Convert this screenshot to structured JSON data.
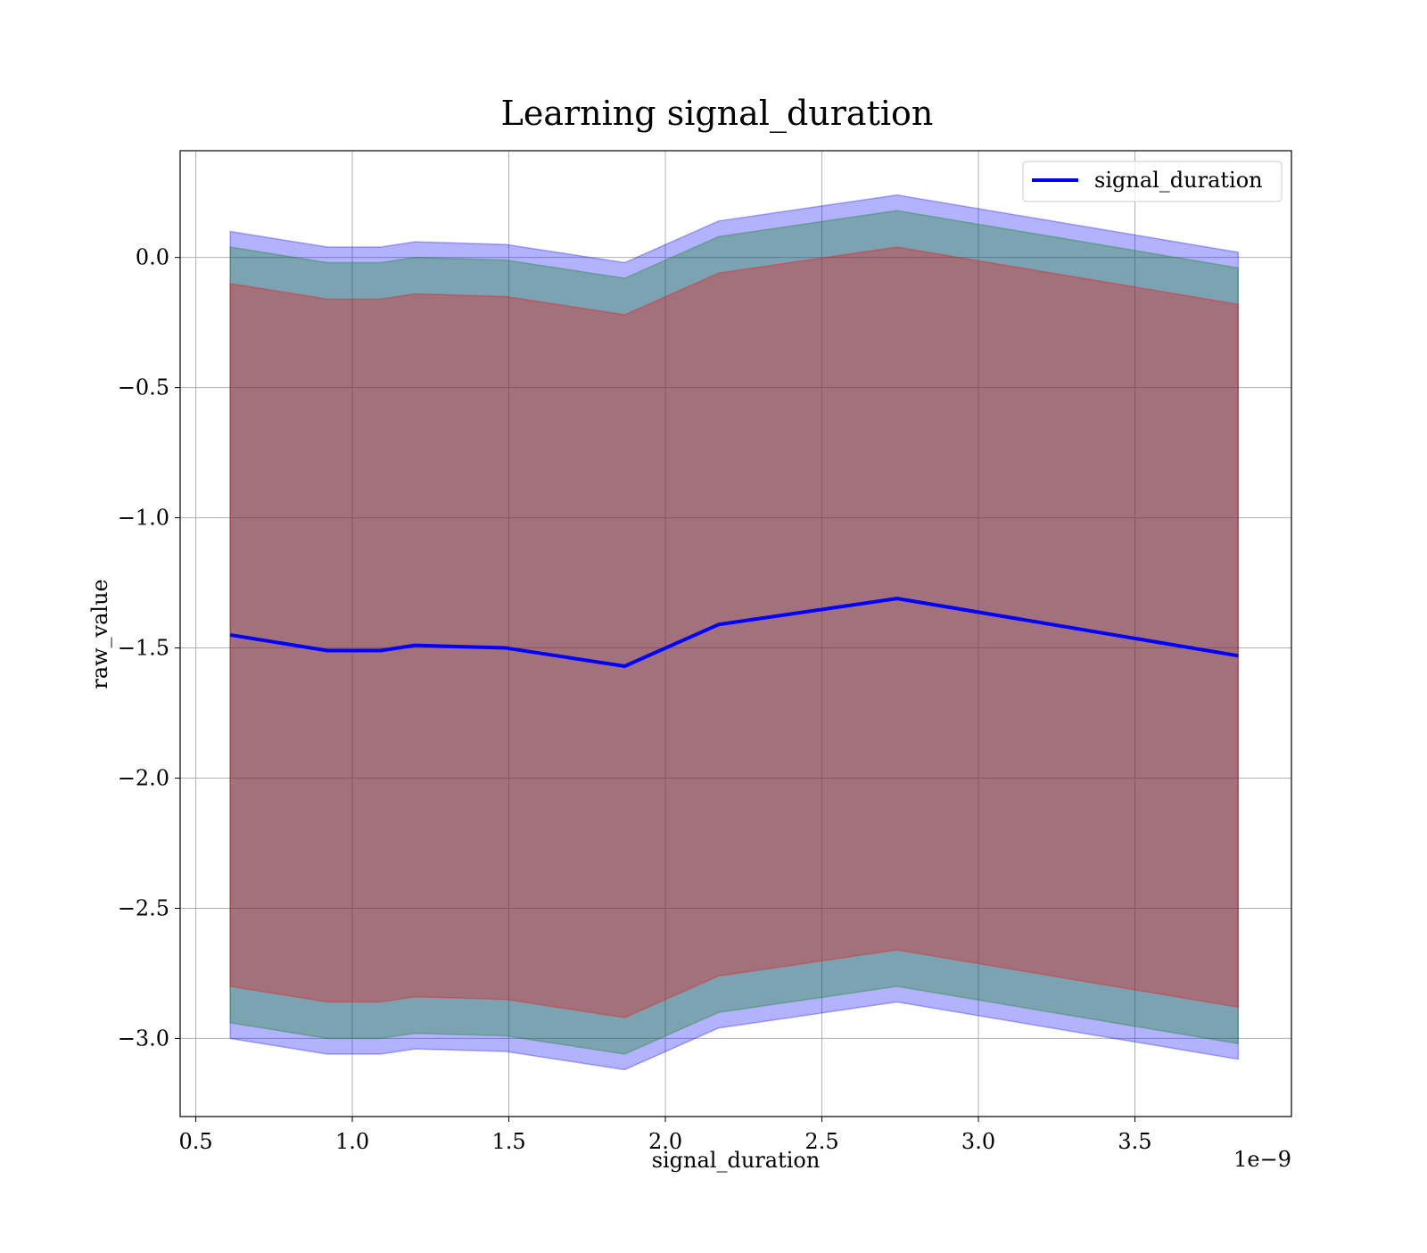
{
  "chart_data": {
    "type": "area",
    "title": "Learning signal_duration",
    "xlabel": "signal_duration",
    "ylabel": "raw_value",
    "x_offset_label": "1e−9",
    "xlim": [
      0.45,
      4.0
    ],
    "ylim": [
      -3.3,
      0.41
    ],
    "x_ticks": [
      0.5,
      1.0,
      1.5,
      2.0,
      2.5,
      3.0,
      3.5
    ],
    "x_tick_labels": [
      "0.5",
      "1.0",
      "1.5",
      "2.0",
      "2.5",
      "3.0",
      "3.5"
    ],
    "y_ticks": [
      0.0,
      -0.5,
      -1.0,
      -1.5,
      -2.0,
      -2.5,
      -3.0
    ],
    "y_tick_labels": [
      "0.0",
      "−0.5",
      "−1.0",
      "−1.5",
      "−2.0",
      "−2.5",
      "−3.0"
    ],
    "grid": true,
    "legend_position": "top-right",
    "x": [
      0.61,
      0.92,
      1.09,
      1.2,
      1.49,
      1.87,
      2.17,
      2.74,
      3.83
    ],
    "series": [
      {
        "name": "signal_duration",
        "color": "#0000ff",
        "values": [
          -1.45,
          -1.51,
          -1.51,
          -1.49,
          -1.5,
          -1.57,
          -1.41,
          -1.31,
          -1.53
        ]
      }
    ],
    "bands": [
      {
        "color": "#0000ff",
        "opacity": 0.3,
        "upper": [
          0.1,
          0.04,
          0.04,
          0.06,
          0.05,
          -0.02,
          0.14,
          0.24,
          0.02
        ],
        "lower": [
          -3.0,
          -3.06,
          -3.06,
          -3.04,
          -3.05,
          -3.12,
          -2.96,
          -2.86,
          -3.08
        ]
      },
      {
        "color": "#008000",
        "opacity": 0.3,
        "upper": [
          0.04,
          -0.02,
          -0.02,
          0.0,
          -0.01,
          -0.08,
          0.08,
          0.18,
          -0.04
        ],
        "lower": [
          -2.94,
          -3.0,
          -3.0,
          -2.98,
          -2.99,
          -3.06,
          -2.9,
          -2.8,
          -3.02
        ]
      },
      {
        "color": "#ff0000",
        "opacity": 0.3,
        "upper": [
          -0.1,
          -0.16,
          -0.16,
          -0.14,
          -0.15,
          -0.22,
          -0.06,
          0.04,
          -0.18
        ],
        "lower": [
          -2.8,
          -2.86,
          -2.86,
          -2.84,
          -2.85,
          -2.92,
          -2.76,
          -2.66,
          -2.88
        ]
      }
    ]
  }
}
